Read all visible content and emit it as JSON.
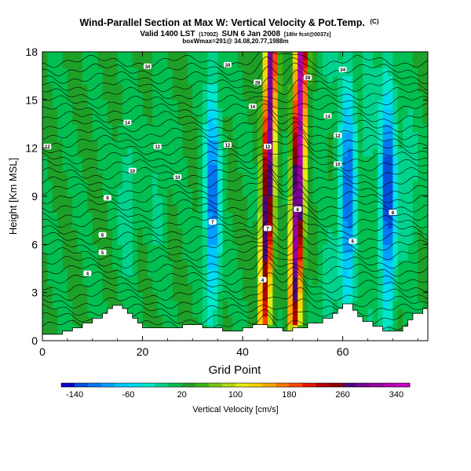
{
  "chart_data": {
    "type": "heatmap",
    "title": "Wind-Parallel Section at Max W: Vertical Velocity & Pot.Temp.",
    "title_mark": "(C)",
    "subtitle_valid": "Valid 1400 LST",
    "subtitle_utc": "(1700Z)",
    "subtitle_date": "SUN 6 Jan 2008",
    "subtitle_run": "[18hr fcst@0037z]",
    "subtitle_box": "boxWmax=291@ 34.08,20.77,1988m",
    "xlabel": "Grid Point",
    "ylabel": "Height [Km MSL]",
    "xlim": [
      0,
      77
    ],
    "ylim": [
      0,
      18
    ],
    "xticks": [
      0,
      20,
      40,
      60
    ],
    "yticks": [
      0,
      3,
      6,
      9,
      12,
      15,
      18
    ],
    "colorbar": {
      "label": "Vertical Velocity [cm/s]",
      "min": -160,
      "max": 360,
      "step": 20,
      "tick_labels": [
        -140,
        -60,
        20,
        100,
        180,
        260,
        340
      ],
      "colors": [
        "#0000c8",
        "#0050dc",
        "#0078f0",
        "#00a0ff",
        "#00c8ff",
        "#00dcf0",
        "#00e6c8",
        "#00d28c",
        "#00be50",
        "#1ea028",
        "#3cb414",
        "#78c814",
        "#b4dc14",
        "#e6eb14",
        "#ffd200",
        "#ffaa00",
        "#ff7800",
        "#ff4600",
        "#e61400",
        "#b40000",
        "#8c0000",
        "#500078",
        "#780096",
        "#9600a0",
        "#b400b4",
        "#c800c8"
      ]
    },
    "terrain_km": [
      [
        0,
        0.4
      ],
      [
        4,
        0.4
      ],
      [
        4,
        0.6
      ],
      [
        6,
        0.6
      ],
      [
        6,
        0.8
      ],
      [
        8,
        0.8
      ],
      [
        8,
        1.1
      ],
      [
        10,
        1.1
      ],
      [
        10,
        1.4
      ],
      [
        12,
        1.4
      ],
      [
        12,
        1.7
      ],
      [
        13,
        1.7
      ],
      [
        13,
        2.0
      ],
      [
        14,
        2.0
      ],
      [
        14,
        2.2
      ],
      [
        16,
        2.2
      ],
      [
        16,
        2.0
      ],
      [
        17,
        2.0
      ],
      [
        17,
        1.7
      ],
      [
        18,
        1.7
      ],
      [
        18,
        1.4
      ],
      [
        19,
        1.4
      ],
      [
        19,
        1.1
      ],
      [
        20,
        1.1
      ],
      [
        20,
        0.8
      ],
      [
        28,
        0.8
      ],
      [
        28,
        1.0
      ],
      [
        32,
        1.0
      ],
      [
        32,
        0.8
      ],
      [
        36,
        0.8
      ],
      [
        36,
        0.6
      ],
      [
        40,
        0.6
      ],
      [
        40,
        0.8
      ],
      [
        42,
        0.8
      ],
      [
        42,
        1.0
      ],
      [
        45,
        1.0
      ],
      [
        45,
        0.8
      ],
      [
        48,
        0.8
      ],
      [
        48,
        0.6
      ],
      [
        50,
        0.6
      ],
      [
        50,
        0.8
      ],
      [
        53,
        0.8
      ],
      [
        53,
        1.1
      ],
      [
        56,
        1.1
      ],
      [
        56,
        1.4
      ],
      [
        58,
        1.4
      ],
      [
        58,
        1.7
      ],
      [
        59,
        1.7
      ],
      [
        59,
        2.0
      ],
      [
        60,
        2.0
      ],
      [
        60,
        2.3
      ],
      [
        62,
        2.3
      ],
      [
        62,
        1.9
      ],
      [
        63,
        1.9
      ],
      [
        63,
        1.5
      ],
      [
        64,
        1.5
      ],
      [
        64,
        1.2
      ],
      [
        66,
        1.2
      ],
      [
        66,
        0.9
      ],
      [
        68,
        0.9
      ],
      [
        68,
        0.6
      ],
      [
        72,
        0.6
      ],
      [
        72,
        0.9
      ],
      [
        73,
        0.9
      ],
      [
        73,
        1.3
      ],
      [
        74,
        1.3
      ],
      [
        74,
        1.7
      ],
      [
        76,
        1.7
      ],
      [
        76,
        2.0
      ],
      [
        77,
        2.0
      ]
    ],
    "updrafts": [
      {
        "x": 45,
        "w": 300,
        "note": "main updraft plume"
      },
      {
        "x": 51,
        "w": 340,
        "note": "strongest updraft plume"
      }
    ],
    "downdrafts": [
      {
        "x": 34,
        "w": -120
      },
      {
        "x": 61,
        "w": -130
      },
      {
        "x": 69,
        "w": -150
      }
    ],
    "isentrope_labels": [
      {
        "x": 21,
        "z": 17.1,
        "text": "34"
      },
      {
        "x": 37,
        "z": 17.2,
        "text": "34"
      },
      {
        "x": 60,
        "z": 16.9,
        "text": "34"
      },
      {
        "x": 43,
        "z": 16.1,
        "text": "28"
      },
      {
        "x": 53,
        "z": 16.4,
        "text": "28"
      },
      {
        "x": 42,
        "z": 14.6,
        "text": "14"
      },
      {
        "x": 57,
        "z": 14.0,
        "text": "14"
      },
      {
        "x": 17,
        "z": 13.6,
        "text": "14"
      },
      {
        "x": 1,
        "z": 12.1,
        "text": "12"
      },
      {
        "x": 23,
        "z": 12.1,
        "text": "12"
      },
      {
        "x": 37,
        "z": 12.2,
        "text": "12"
      },
      {
        "x": 45,
        "z": 12.1,
        "text": "12"
      },
      {
        "x": 59,
        "z": 12.8,
        "text": "12"
      },
      {
        "x": 59,
        "z": 11.0,
        "text": "10"
      },
      {
        "x": 18,
        "z": 10.6,
        "text": "10"
      },
      {
        "x": 27,
        "z": 10.2,
        "text": "10"
      },
      {
        "x": 13,
        "z": 8.9,
        "text": "9"
      },
      {
        "x": 51,
        "z": 8.2,
        "text": "8"
      },
      {
        "x": 70,
        "z": 8.0,
        "text": "8"
      },
      {
        "x": 34,
        "z": 7.4,
        "text": "7"
      },
      {
        "x": 45,
        "z": 7.0,
        "text": "7"
      },
      {
        "x": 12,
        "z": 6.6,
        "text": "6"
      },
      {
        "x": 62,
        "z": 6.2,
        "text": "6"
      },
      {
        "x": 12,
        "z": 5.5,
        "text": "5"
      },
      {
        "x": 9,
        "z": 4.2,
        "text": "4"
      },
      {
        "x": 44,
        "z": 3.8,
        "text": "4"
      }
    ]
  }
}
